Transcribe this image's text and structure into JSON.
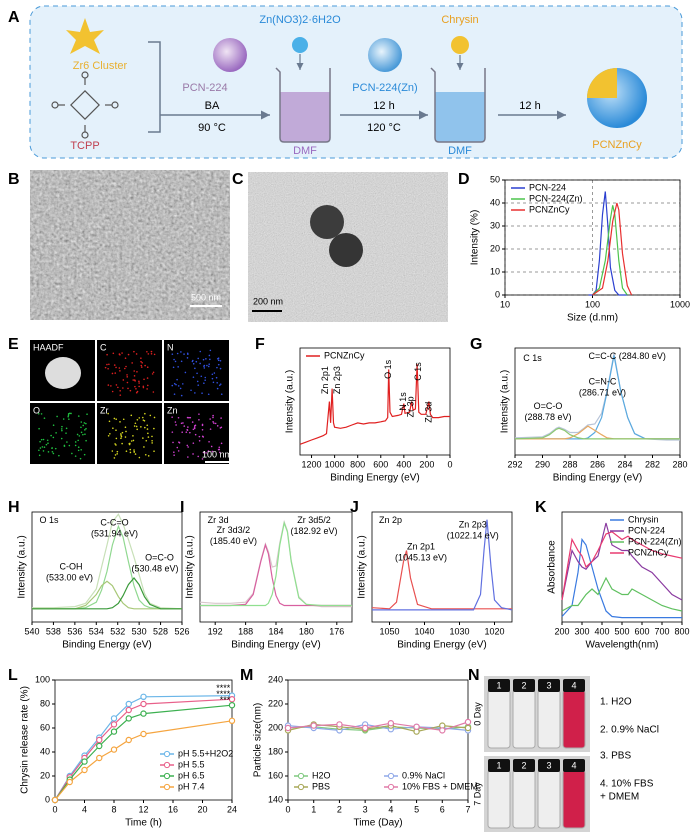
{
  "panel_labels": [
    "A",
    "B",
    "C",
    "D",
    "E",
    "F",
    "G",
    "H",
    "I",
    "J",
    "K",
    "L",
    "M",
    "N"
  ],
  "scheme": {
    "zr_cluster": "Zr6 Cluster",
    "tcpp": "TCPP",
    "pcn224": "PCN-224",
    "step1_reagent": "BA",
    "step1_temp": "90 °C",
    "solvent1": "DMF",
    "zn_salt": "Zn(NO3)2·6H2O",
    "pcn224zn": "PCN-224(Zn)",
    "step2_time": "12 h",
    "step2_temp": "120 °C",
    "solvent2": "DMF",
    "chrysin": "Chrysin",
    "step3_time": "12 h",
    "product": "PCNZnCy"
  },
  "sem": {
    "scale_bar": "500 nm"
  },
  "tem": {
    "scale_bar": "200 nm"
  },
  "eds": {
    "channels": [
      "HAADF",
      "C",
      "N",
      "O",
      "Zr",
      "Zn"
    ],
    "scale_bar": "100 nm"
  },
  "photo": {
    "vial_numbers": [
      "1",
      "2",
      "3",
      "4"
    ],
    "rows": [
      "0 Day",
      "7 Day"
    ],
    "legend": [
      "1. H2O",
      "2. 0.9% NaCl",
      "3. PBS",
      "4. 10% FBS",
      "+ DMEM"
    ]
  },
  "chart_data": [
    {
      "type": "line",
      "xlabel": "Size (d.nm)",
      "ylabel": "Intensity (%)",
      "xlog": true,
      "xlim": [
        10,
        1000
      ],
      "xticks": [
        10,
        100,
        1000
      ],
      "ylim": [
        0,
        50
      ],
      "yticks": [
        0,
        10,
        20,
        30,
        40,
        50
      ],
      "grid": true,
      "legend": "upper left",
      "series": [
        {
          "name": "PCN-224",
          "color": "#2b3fd0",
          "x": [
            90,
            100,
            110,
            120,
            130,
            140,
            150,
            160,
            180,
            200,
            250
          ],
          "values": [
            0,
            0,
            2,
            15,
            35,
            45,
            30,
            12,
            2,
            0,
            0
          ]
        },
        {
          "name": "PCN-224(Zn)",
          "color": "#4cc44c",
          "x": [
            100,
            120,
            140,
            160,
            170,
            180,
            200,
            220,
            250
          ],
          "values": [
            0,
            3,
            15,
            33,
            39,
            35,
            15,
            3,
            0
          ]
        },
        {
          "name": "PCNZnCy",
          "color": "#e83030",
          "x": [
            100,
            130,
            150,
            170,
            190,
            200,
            220,
            250,
            280
          ],
          "values": [
            0,
            3,
            15,
            32,
            40,
            37,
            18,
            4,
            0
          ]
        }
      ]
    },
    {
      "type": "line",
      "xlabel": "Binding Energy (eV)",
      "ylabel": "Intensity (a.u.)",
      "xlim": [
        1300,
        0
      ],
      "xticks": [
        1200,
        1000,
        800,
        600,
        400,
        200,
        0
      ],
      "ylim": [
        0,
        10
      ],
      "legend": "upper left",
      "series": [
        {
          "name": "PCNZnCy",
          "color": "#e02020",
          "x": [
            1300,
            1250,
            1200,
            1150,
            1100,
            1070,
            1045,
            1035,
            1022,
            1010,
            1000,
            950,
            900,
            850,
            800,
            750,
            700,
            650,
            600,
            560,
            540,
            531,
            520,
            500,
            450,
            420,
            400,
            390,
            350,
            333,
            320,
            300,
            285,
            270,
            250,
            210,
            183,
            170,
            150,
            100,
            50,
            0
          ],
          "values": [
            1.0,
            1.2,
            1.4,
            1.6,
            1.8,
            2.0,
            5.0,
            3.0,
            6.2,
            3.0,
            2.6,
            2.5,
            2.6,
            2.8,
            3.0,
            2.9,
            3.0,
            3.0,
            3.1,
            3.2,
            3.5,
            8.0,
            4.0,
            3.6,
            3.7,
            3.8,
            4.8,
            3.9,
            4.0,
            5.0,
            4.2,
            4.3,
            8.5,
            4.0,
            3.8,
            3.8,
            5.0,
            3.8,
            3.5,
            3.5,
            3.6,
            3.6
          ]
        }
      ],
      "annotations": [
        "Zn 2p1",
        "Zn 2p3",
        "O 1s",
        "N 1s",
        "Zr 3p",
        "C 1s",
        "Zr 3d"
      ]
    },
    {
      "type": "line",
      "xlabel": "Binding Energy (eV)",
      "ylabel": "Intensity (a.u.)",
      "xlim": [
        292,
        280
      ],
      "xticks": [
        292,
        290,
        288,
        286,
        284,
        282,
        280
      ],
      "ylim": [
        0,
        10
      ],
      "x": [
        292,
        290,
        289.5,
        289,
        288.8,
        288.4,
        288,
        287.4,
        287,
        286.7,
        286.2,
        285.7,
        285.3,
        284.8,
        284.3,
        283.8,
        283.3,
        282.5,
        281,
        280
      ],
      "series": [
        {
          "color": "#b8c4d8",
          "values": [
            1.6,
            1.7,
            2.0,
            2.5,
            2.6,
            2.4,
            2.1,
            2.1,
            2.5,
            2.8,
            2.9,
            3.9,
            6.0,
            9.5,
            5.9,
            3.5,
            2.0,
            1.5,
            1.4,
            1.4
          ]
        },
        {
          "color": "#5aaae0",
          "values": [
            1.5,
            1.5,
            1.5,
            1.5,
            1.5,
            1.5,
            1.5,
            1.5,
            1.5,
            1.6,
            2.1,
            3.5,
            5.9,
            9.3,
            5.9,
            3.5,
            2.0,
            1.5,
            1.5,
            1.5
          ]
        },
        {
          "color": "#e8a860",
          "values": [
            1.5,
            1.5,
            1.5,
            1.5,
            1.5,
            1.5,
            1.6,
            2.0,
            2.4,
            2.7,
            2.3,
            1.9,
            1.6,
            1.5,
            1.5,
            1.5,
            1.5,
            1.5,
            1.5,
            1.5
          ]
        },
        {
          "color": "#8cc870",
          "values": [
            1.5,
            1.6,
            1.9,
            2.4,
            2.5,
            2.3,
            1.9,
            1.6,
            1.5,
            1.5,
            1.5,
            1.5,
            1.5,
            1.5,
            1.5,
            1.5,
            1.5,
            1.5,
            1.5,
            1.5
          ]
        }
      ],
      "annotations": [
        "C 1s",
        "C=C-C (284.80 eV)",
        "C=N-C",
        "(286.71 eV)",
        "O=C-O",
        "(288.78 eV)"
      ]
    },
    {
      "type": "line",
      "xlabel": "Binding Energy (eV)",
      "ylabel": "Intensity (a.u.)",
      "xlim": [
        540,
        526
      ],
      "xticks": [
        540,
        538,
        536,
        534,
        532,
        530,
        528,
        526
      ],
      "ylim": [
        0,
        10
      ],
      "x": [
        540,
        538,
        536,
        535,
        534,
        533.5,
        533,
        532.5,
        531.94,
        531.5,
        531,
        530.48,
        530,
        529.5,
        529,
        528,
        526
      ],
      "series": [
        {
          "color": "#c8e0b8",
          "values": [
            1.3,
            1.3,
            1.4,
            1.7,
            3.0,
            5.0,
            7.0,
            9.1,
            9.8,
            8.9,
            7.5,
            5.9,
            4.3,
            2.6,
            1.7,
            1.3,
            1.2
          ]
        },
        {
          "color": "#90d890",
          "values": [
            1.2,
            1.2,
            1.2,
            1.3,
            1.8,
            2.9,
            4.6,
            7.0,
            8.7,
            7.7,
            5.5,
            3.3,
            2.0,
            1.5,
            1.3,
            1.2,
            1.2
          ]
        },
        {
          "color": "#a8c878",
          "values": [
            1.2,
            1.2,
            1.2,
            1.5,
            2.5,
            3.3,
            3.7,
            3.3,
            2.3,
            1.7,
            1.3,
            1.2,
            1.2,
            1.2,
            1.2,
            1.2,
            1.2
          ]
        },
        {
          "color": "#3a9a3a",
          "values": [
            1.2,
            1.2,
            1.2,
            1.2,
            1.2,
            1.2,
            1.2,
            1.3,
            1.7,
            2.4,
            3.4,
            4.0,
            3.4,
            2.3,
            1.6,
            1.2,
            1.2
          ]
        }
      ],
      "annotations": [
        "O 1s",
        "C-C=O",
        "(531.94 eV)",
        "C-OH",
        "(533.00 eV)",
        "O=C-O",
        "(530.48 eV)"
      ]
    },
    {
      "type": "line",
      "xlabel": "Binding Energy (eV)",
      "ylabel": "Intensity (a.u.)",
      "xlim": [
        194,
        174
      ],
      "xticks": [
        192,
        188,
        184,
        180,
        176
      ],
      "ylim": [
        0,
        10
      ],
      "x": [
        194,
        192,
        190,
        188,
        187,
        186,
        185.4,
        185,
        184.5,
        184,
        183.5,
        182.92,
        182.5,
        182,
        181,
        180,
        178,
        176,
        174
      ],
      "series": [
        {
          "color": "#d8c8cc",
          "values": [
            1.8,
            1.7,
            1.7,
            1.8,
            2.6,
            5.6,
            7.1,
            6.4,
            5.0,
            5.1,
            7.2,
            9.1,
            8.3,
            5.6,
            2.3,
            1.6,
            1.4,
            1.4,
            1.4
          ]
        },
        {
          "color": "#d860a0",
          "values": [
            1.5,
            1.5,
            1.5,
            1.6,
            2.5,
            5.5,
            7.0,
            6.2,
            4.0,
            2.4,
            1.7,
            1.5,
            1.5,
            1.5,
            1.5,
            1.5,
            1.5,
            1.5,
            1.5
          ]
        },
        {
          "color": "#90e090",
          "values": [
            1.5,
            1.5,
            1.5,
            1.5,
            1.5,
            1.5,
            1.5,
            1.7,
            2.5,
            4.2,
            7.0,
            9.0,
            8.2,
            5.5,
            2.2,
            1.6,
            1.5,
            1.5,
            1.5
          ]
        }
      ],
      "annotations": [
        "Zr 3d",
        "Zr 3d3/2",
        "(185.40 eV)",
        "Zr 3d5/2",
        "(182.92 eV)"
      ]
    },
    {
      "type": "line",
      "xlabel": "Binding Energy (eV)",
      "ylabel": "Intensity (a.u.)",
      "xlim": [
        1055,
        1015
      ],
      "xticks": [
        1050,
        1040,
        1030,
        1020
      ],
      "ylim": [
        0,
        10
      ],
      "x": [
        1055,
        1050,
        1048,
        1046,
        1045.13,
        1044,
        1042,
        1038,
        1030,
        1026,
        1024,
        1023,
        1022.14,
        1021,
        1020,
        1018,
        1015
      ],
      "series": [
        {
          "color": "#e85050",
          "values": [
            1.3,
            1.2,
            1.8,
            5.5,
            6.5,
            4.0,
            1.6,
            1.2,
            1.2,
            1.2,
            1.2,
            1.2,
            1.2,
            1.2,
            1.2,
            1.2,
            1.2
          ]
        },
        {
          "color": "#6070e0",
          "values": [
            1.1,
            1.1,
            1.1,
            1.1,
            1.1,
            1.1,
            1.1,
            1.1,
            1.1,
            1.1,
            2.5,
            6.5,
            9.3,
            5.0,
            2.0,
            1.3,
            1.1
          ]
        }
      ],
      "annotations": [
        "Zn 2p",
        "Zn 2p3",
        "(1022.14 eV)",
        "Zn 2p1",
        "(1045.13 eV)"
      ]
    },
    {
      "type": "line",
      "xlabel": "Wavelength(nm)",
      "ylabel": "Absorbance",
      "xlim": [
        200,
        800
      ],
      "xticks": [
        200,
        300,
        400,
        500,
        600,
        700,
        800
      ],
      "ylim": [
        0,
        10
      ],
      "legend": "upper right",
      "x": [
        200,
        250,
        280,
        300,
        320,
        350,
        380,
        420,
        450,
        500,
        530,
        550,
        600,
        650,
        700,
        750,
        800
      ],
      "series": [
        {
          "name": "Chrysin",
          "color": "#3a7ae0",
          "values": [
            0.5,
            1.5,
            4.5,
            7.5,
            7.0,
            5.0,
            3.0,
            1.0,
            0.5,
            0.4,
            0.4,
            0.4,
            0.4,
            0.4,
            0.4,
            0.4,
            0.4
          ]
        },
        {
          "name": "PCN-224",
          "color": "#8a3aa0",
          "values": [
            2.0,
            6.5,
            5.5,
            5.0,
            4.8,
            5.5,
            6.0,
            9.0,
            7.0,
            6.5,
            6.5,
            6.0,
            5.0,
            4.5,
            3.5,
            2.5,
            2.0
          ]
        },
        {
          "name": "PCN-224(Zn)",
          "color": "#60c060",
          "values": [
            1.0,
            1.5,
            1.5,
            2.0,
            2.5,
            3.0,
            2.5,
            4.0,
            3.0,
            2.5,
            2.5,
            3.0,
            2.5,
            2.0,
            1.5,
            1.2,
            1.0
          ]
        },
        {
          "name": "PCNZnCy",
          "color": "#e83a70",
          "values": [
            2.0,
            7.5,
            6.5,
            6.0,
            5.0,
            5.5,
            6.5,
            8.0,
            8.2,
            7.5,
            7.8,
            7.5,
            7.0,
            6.5,
            6.2,
            6.0,
            5.8
          ]
        }
      ]
    },
    {
      "type": "line",
      "xlabel": "Time (h)",
      "ylabel": "Chrysin release rate (%)",
      "xlim": [
        0,
        24
      ],
      "xticks": [
        0,
        4,
        8,
        12,
        16,
        20,
        24
      ],
      "ylim": [
        0,
        100
      ],
      "yticks": [
        0,
        20,
        40,
        60,
        80,
        100
      ],
      "markers": true,
      "legend": "lower right",
      "x": [
        0,
        2,
        4,
        6,
        8,
        10,
        12,
        24
      ],
      "series": [
        {
          "name": "pH 5.5+H2O2",
          "color": "#6bb6e8",
          "values": [
            0,
            20,
            37,
            52,
            68,
            80,
            86,
            87
          ]
        },
        {
          "name": "pH 5.5",
          "color": "#e8608a",
          "values": [
            0,
            19,
            35,
            50,
            63,
            75,
            80,
            84
          ]
        },
        {
          "name": "pH 6.5",
          "color": "#3cb050",
          "values": [
            0,
            17,
            32,
            45,
            57,
            68,
            72,
            79
          ]
        },
        {
          "name": "pH 7.4",
          "color": "#f5a540",
          "values": [
            0,
            15,
            25,
            35,
            42,
            50,
            55,
            66
          ]
        }
      ],
      "annotations": [
        "****",
        "****",
        "***"
      ]
    },
    {
      "type": "line",
      "xlabel": "Time (Day)",
      "ylabel": "Particle size(nm)",
      "xlim": [
        0,
        7
      ],
      "xticks": [
        0,
        1,
        2,
        3,
        4,
        5,
        6,
        7
      ],
      "ylim": [
        140,
        240
      ],
      "yticks": [
        140,
        160,
        180,
        200,
        220,
        240
      ],
      "markers": true,
      "legend": "lower",
      "legend_columns": 2,
      "x": [
        0,
        1,
        2,
        3,
        4,
        5,
        6,
        7
      ],
      "series": [
        {
          "name": "H2O",
          "color": "#7fc97f",
          "values": [
            200,
            201,
            199,
            198,
            201,
            200,
            199,
            201
          ]
        },
        {
          "name": "0.9% NaCl",
          "color": "#8fa8e8",
          "values": [
            202,
            200,
            198,
            203,
            199,
            201,
            200,
            198
          ]
        },
        {
          "name": "PBS",
          "color": "#a8a858",
          "values": [
            198,
            203,
            201,
            199,
            202,
            197,
            202,
            200
          ]
        },
        {
          "name": "10% FBS + DMEM",
          "color": "#e07aa8",
          "values": [
            200,
            202,
            203,
            200,
            204,
            201,
            198,
            205
          ]
        }
      ]
    }
  ]
}
